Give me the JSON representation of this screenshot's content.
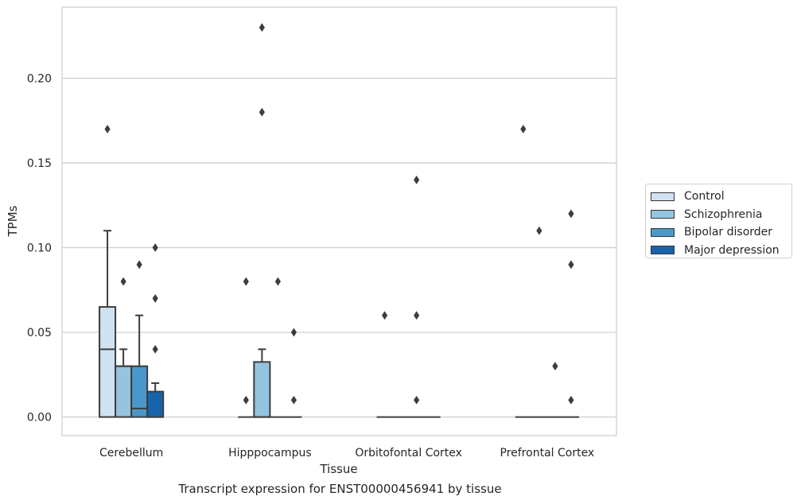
{
  "caption": "Transcript expression for ENST00000456941 by tissue",
  "chart_data": {
    "type": "box",
    "title": "",
    "xlabel": "Tissue",
    "ylabel": "TPMs",
    "ylim": [
      -0.011,
      0.242
    ],
    "yticks": [
      0.0,
      0.05,
      0.1,
      0.15,
      0.2
    ],
    "ytick_labels": [
      "0.00",
      "0.05",
      "0.10",
      "0.15",
      "0.20"
    ],
    "grid": "horizontal",
    "legend_position": "right",
    "categories": [
      "Cerebellum",
      "Hipppocampus",
      "Orbitofontal Cortex",
      "Prefrontal Cortex"
    ],
    "series": [
      {
        "name": "Control",
        "color": "#d0e1f2",
        "boxes": [
          {
            "q1": 0.0,
            "median": 0.04,
            "q3": 0.065,
            "whisker_low": 0.0,
            "whisker_high": 0.11,
            "outliers": [
              0.17
            ]
          },
          {
            "q1": 0.0,
            "median": 0.0,
            "q3": 0.0,
            "whisker_low": 0.0,
            "whisker_high": 0.0,
            "outliers": [
              0.01,
              0.08
            ]
          },
          {
            "q1": 0.0,
            "median": 0.0,
            "q3": 0.0,
            "whisker_low": 0.0,
            "whisker_high": 0.0,
            "outliers": [
              0.06
            ]
          },
          {
            "q1": 0.0,
            "median": 0.0,
            "q3": 0.0,
            "whisker_low": 0.0,
            "whisker_high": 0.0,
            "outliers": [
              0.17
            ]
          }
        ]
      },
      {
        "name": "Schizophrenia",
        "color": "#94c4df",
        "boxes": [
          {
            "q1": 0.0,
            "median": 0.03,
            "q3": 0.03,
            "whisker_low": 0.0,
            "whisker_high": 0.04,
            "outliers": [
              0.08
            ]
          },
          {
            "q1": 0.0,
            "median": 0.0,
            "q3": 0.0325,
            "whisker_low": 0.0,
            "whisker_high": 0.04,
            "outliers": [
              0.18,
              0.23
            ]
          },
          {
            "q1": 0.0,
            "median": 0.0,
            "q3": 0.0,
            "whisker_low": 0.0,
            "whisker_high": 0.0,
            "outliers": []
          },
          {
            "q1": 0.0,
            "median": 0.0,
            "q3": 0.0,
            "whisker_low": 0.0,
            "whisker_high": 0.0,
            "outliers": [
              0.11
            ]
          }
        ]
      },
      {
        "name": "Bipolar disorder",
        "color": "#4a98c9",
        "boxes": [
          {
            "q1": 0.0,
            "median": 0.005,
            "q3": 0.03,
            "whisker_low": 0.0,
            "whisker_high": 0.06,
            "outliers": [
              0.09
            ]
          },
          {
            "q1": 0.0,
            "median": 0.0,
            "q3": 0.0,
            "whisker_low": 0.0,
            "whisker_high": 0.0,
            "outliers": [
              0.08
            ]
          },
          {
            "q1": 0.0,
            "median": 0.0,
            "q3": 0.0,
            "whisker_low": 0.0,
            "whisker_high": 0.0,
            "outliers": [
              0.01,
              0.06,
              0.14
            ]
          },
          {
            "q1": 0.0,
            "median": 0.0,
            "q3": 0.0,
            "whisker_low": 0.0,
            "whisker_high": 0.0,
            "outliers": [
              0.03
            ]
          }
        ]
      },
      {
        "name": "Major depression",
        "color": "#1764ab",
        "boxes": [
          {
            "q1": 0.0,
            "median": 0.0,
            "q3": 0.015,
            "whisker_low": 0.0,
            "whisker_high": 0.02,
            "outliers": [
              0.04,
              0.07,
              0.1
            ]
          },
          {
            "q1": 0.0,
            "median": 0.0,
            "q3": 0.0,
            "whisker_low": 0.0,
            "whisker_high": 0.0,
            "outliers": [
              0.01,
              0.05
            ]
          },
          {
            "q1": 0.0,
            "median": 0.0,
            "q3": 0.0,
            "whisker_low": 0.0,
            "whisker_high": 0.0,
            "outliers": []
          },
          {
            "q1": 0.0,
            "median": 0.0,
            "q3": 0.0,
            "whisker_low": 0.0,
            "whisker_high": 0.0,
            "outliers": [
              0.01,
              0.09,
              0.12
            ]
          }
        ]
      }
    ]
  }
}
